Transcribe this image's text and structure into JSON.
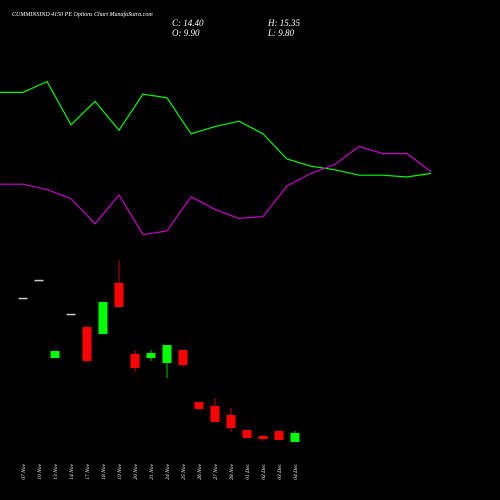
{
  "chart_data": [
    {
      "type": "candlestick",
      "title": "CUMMINSIND 4150 PE Options Chart MunafaSutra.com",
      "ohlc_labels": {
        "close": "C: 14.40",
        "high": "H: 15.35",
        "open": "O: 9.90",
        "low": "L: 9.80"
      },
      "categories": [
        "07 Nov",
        "10 Nov",
        "13 Nov",
        "14 Nov",
        "17 Nov",
        "18 Nov",
        "19 Nov",
        "20 Nov",
        "21 Nov",
        "24 Nov",
        "25 Nov",
        "26 Nov",
        "27 Nov",
        "28 Nov",
        "01 Dec",
        "02 Dec",
        "03 Dec",
        "04 Dec"
      ],
      "open": [
        82,
        91,
        51.9,
        74,
        67.4,
        63.9,
        89.4,
        53.9,
        51.9,
        49.4,
        55.9,
        29.9,
        27.9,
        23.4,
        15.9,
        12.9,
        15.4,
        9.9
      ],
      "high": [
        82,
        91,
        55.4,
        74,
        67.4,
        79.9,
        100.9,
        55.9,
        55.9,
        58.4,
        55.9,
        29.9,
        31.9,
        26.9,
        15.9,
        13.4,
        15.4,
        15.35
      ],
      "low": [
        82,
        91,
        51.9,
        74,
        50.4,
        63.9,
        77.4,
        44.9,
        50.4,
        41.9,
        47.4,
        26.4,
        19.9,
        14.9,
        11.9,
        10.4,
        10.9,
        9.8
      ],
      "close": [
        82,
        91,
        55.4,
        74,
        50.4,
        79.9,
        77.4,
        46.9,
        54.4,
        58.4,
        48.4,
        26.4,
        19.9,
        16.9,
        11.9,
        11.4,
        10.9,
        14.4
      ],
      "up_color": "#00ff00",
      "down_color": "#ff0000",
      "flat_color": "#cccccc",
      "ylim": [
        0,
        110
      ]
    },
    {
      "type": "line",
      "series": [
        {
          "color": "#00ff00",
          "values": [
            82,
            82,
            88,
            64,
            77,
            61,
            81,
            79,
            59,
            63,
            66,
            59,
            45,
            41,
            39,
            36,
            36,
            35,
            37
          ]
        },
        {
          "color": "#cc00cc",
          "values": [
            31,
            31,
            28,
            23,
            9,
            25,
            3,
            5,
            24,
            17,
            12,
            13,
            30,
            37,
            42,
            52,
            48,
            48,
            38
          ]
        }
      ],
      "ylim": [
        0,
        100
      ]
    }
  ]
}
